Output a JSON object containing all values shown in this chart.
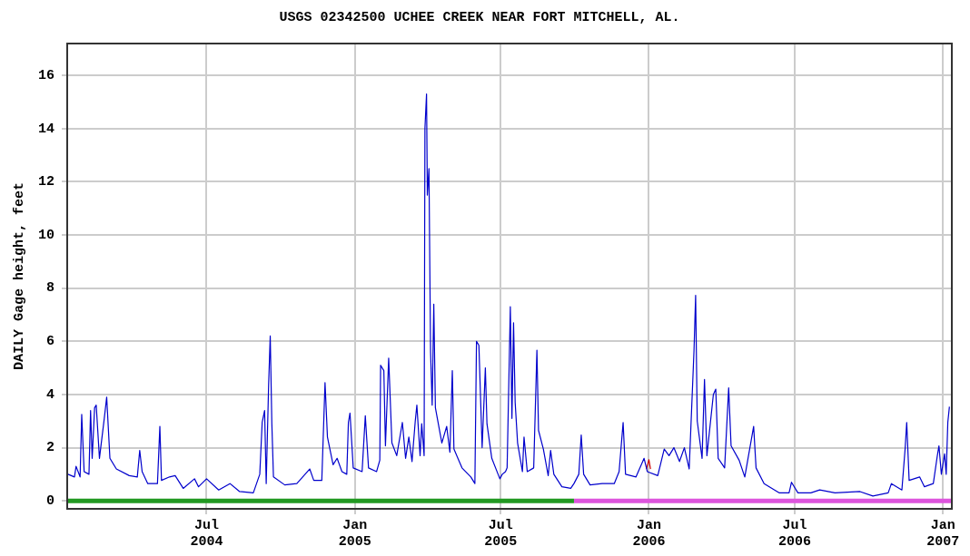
{
  "chart_data": {
    "type": "line",
    "title": "USGS 02342500 UCHEE CREEK NEAR FORT MITCHELL, AL.",
    "ylabel": "DAILY Gage height, feet",
    "marker": "none",
    "grid": true,
    "xlim": [
      "2004-01-10",
      "2007-01-12"
    ],
    "xticks": [
      {
        "value": "2004-07-01",
        "label": "Jul 2004"
      },
      {
        "value": "2005-01-01",
        "label": "Jan 2005"
      },
      {
        "value": "2005-07-01",
        "label": "Jul 2005"
      },
      {
        "value": "2006-01-01",
        "label": "Jan 2006"
      },
      {
        "value": "2006-07-01",
        "label": "Jul 2006"
      },
      {
        "value": "2007-01-01",
        "label": "Jan 2007"
      }
    ],
    "ylim": [
      -0.3,
      17.2
    ],
    "yticks": [
      0,
      2,
      4,
      6,
      8,
      10,
      12,
      14,
      16
    ],
    "series": [
      {
        "color": "#0000cc",
        "x": [
          "2004-01-11",
          "2004-01-19",
          "2004-01-21",
          "2004-01-26",
          "2004-01-28",
          "2004-01-31",
          "2004-02-06",
          "2004-02-08",
          "2004-02-10",
          "2004-02-13",
          "2004-02-15",
          "2004-02-19",
          "2004-02-25",
          "2004-02-28",
          "2004-03-03",
          "2004-03-11",
          "2004-03-27",
          "2004-04-06",
          "2004-04-09",
          "2004-04-12",
          "2004-04-19",
          "2004-05-01",
          "2004-05-04",
          "2004-05-06",
          "2004-05-16",
          "2004-05-23",
          "2004-06-02",
          "2004-06-16",
          "2004-06-21",
          "2004-07-01",
          "2004-07-16",
          "2004-07-30",
          "2004-08-11",
          "2004-08-28",
          "2004-09-05",
          "2004-09-08",
          "2004-09-11",
          "2004-09-13",
          "2004-09-16",
          "2004-09-18",
          "2004-09-20",
          "2004-09-22",
          "2004-10-06",
          "2004-10-21",
          "2004-11-06",
          "2004-11-11",
          "2004-11-21",
          "2004-11-25",
          "2004-11-28",
          "2004-12-05",
          "2004-12-10",
          "2004-12-16",
          "2004-12-22",
          "2004-12-24",
          "2004-12-26",
          "2004-12-30",
          "2005-01-10",
          "2005-01-14",
          "2005-01-18",
          "2005-01-28",
          "2005-02-01",
          "2005-02-02",
          "2005-02-06",
          "2005-02-08",
          "2005-02-12",
          "2005-02-16",
          "2005-02-22",
          "2005-03-01",
          "2005-03-05",
          "2005-03-09",
          "2005-03-13",
          "2005-03-17",
          "2005-03-19",
          "2005-03-23",
          "2005-03-25",
          "2005-03-28",
          "2005-03-29",
          "2005-03-31",
          "2005-04-01",
          "2005-04-03",
          "2005-04-05",
          "2005-04-07",
          "2005-04-09",
          "2005-04-11",
          "2005-04-19",
          "2005-04-25",
          "2005-04-29",
          "2005-05-02",
          "2005-05-04",
          "2005-05-14",
          "2005-05-25",
          "2005-05-30",
          "2005-06-01",
          "2005-06-04",
          "2005-06-08",
          "2005-06-12",
          "2005-06-14",
          "2005-06-20",
          "2005-06-30",
          "2005-07-03",
          "2005-07-07",
          "2005-07-09",
          "2005-07-13",
          "2005-07-15",
          "2005-07-17",
          "2005-07-19",
          "2005-07-22",
          "2005-07-28",
          "2005-07-30",
          "2005-08-03",
          "2005-08-11",
          "2005-08-15",
          "2005-08-17",
          "2005-08-23",
          "2005-08-29",
          "2005-09-01",
          "2005-09-05",
          "2005-09-15",
          "2005-09-26",
          "2005-09-30",
          "2005-10-06",
          "2005-10-09",
          "2005-10-12",
          "2005-10-20",
          "2005-11-04",
          "2005-11-19",
          "2005-11-25",
          "2005-11-30",
          "2005-12-03",
          "2005-12-16",
          "2005-12-26",
          "2005-12-30",
          "2006-01-12",
          "2006-01-20",
          "2006-01-26",
          "2006-02-01",
          "2006-02-08",
          "2006-02-14",
          "2006-02-20",
          "2006-02-26",
          "2006-02-28",
          "2006-03-02",
          "2006-03-08",
          "2006-03-11",
          "2006-03-14",
          "2006-03-22",
          "2006-03-25",
          "2006-03-28",
          "2006-04-05",
          "2006-04-10",
          "2006-04-13",
          "2006-04-23",
          "2006-04-30",
          "2006-05-11",
          "2006-05-14",
          "2006-05-24",
          "2006-06-12",
          "2006-06-24",
          "2006-06-27",
          "2006-07-05",
          "2006-07-21",
          "2006-08-01",
          "2006-08-20",
          "2006-09-20",
          "2006-10-06",
          "2006-10-25",
          "2006-10-29",
          "2006-11-11",
          "2006-11-15",
          "2006-11-17",
          "2006-11-20",
          "2006-12-03",
          "2006-12-09",
          "2006-12-20",
          "2006-12-25",
          "2006-12-27",
          "2006-12-30",
          "2007-01-03",
          "2007-01-05",
          "2007-01-07",
          "2007-01-09"
        ],
        "values": [
          1.0,
          0.9,
          1.3,
          0.9,
          3.25,
          1.1,
          1.0,
          3.4,
          1.6,
          3.5,
          3.6,
          1.6,
          3.1,
          3.9,
          1.6,
          1.2,
          0.95,
          0.9,
          1.9,
          1.1,
          0.65,
          0.65,
          2.8,
          0.77,
          0.9,
          0.95,
          0.47,
          0.83,
          0.53,
          0.83,
          0.41,
          0.65,
          0.35,
          0.3,
          1.0,
          2.95,
          3.4,
          0.65,
          4.37,
          6.2,
          2.9,
          0.9,
          0.6,
          0.65,
          1.2,
          0.77,
          0.77,
          4.45,
          2.4,
          1.36,
          1.6,
          1.1,
          1.0,
          2.95,
          3.3,
          1.24,
          1.1,
          3.2,
          1.24,
          1.1,
          1.53,
          5.1,
          4.9,
          2.07,
          5.37,
          2.18,
          1.7,
          2.95,
          1.6,
          2.4,
          1.48,
          3.0,
          3.6,
          1.7,
          2.9,
          1.7,
          14.0,
          15.3,
          11.5,
          12.5,
          5.6,
          3.6,
          7.4,
          3.5,
          2.18,
          2.8,
          1.83,
          4.9,
          1.95,
          1.24,
          0.9,
          0.65,
          6.0,
          5.85,
          2.0,
          5.0,
          2.9,
          1.6,
          0.83,
          1.0,
          1.1,
          1.24,
          7.3,
          3.1,
          6.7,
          3.7,
          2.18,
          1.1,
          2.4,
          1.1,
          1.24,
          5.67,
          2.65,
          1.95,
          0.95,
          1.9,
          1.0,
          0.53,
          0.47,
          0.65,
          1.0,
          2.48,
          1.0,
          0.6,
          0.65,
          0.65,
          1.1,
          2.95,
          1.0,
          0.9,
          1.6,
          1.1,
          0.95,
          1.95,
          1.7,
          2.0,
          1.48,
          2.0,
          1.2,
          5.67,
          7.73,
          3.0,
          1.6,
          4.57,
          1.7,
          4.0,
          4.2,
          1.6,
          1.24,
          4.25,
          2.07,
          1.53,
          0.9,
          2.8,
          1.24,
          0.65,
          0.3,
          0.3,
          0.7,
          0.3,
          0.3,
          0.41,
          0.3,
          0.35,
          0.18,
          0.3,
          0.65,
          0.41,
          1.95,
          2.95,
          0.77,
          0.9,
          0.53,
          0.65,
          1.7,
          2.07,
          1.0,
          1.77,
          1.0,
          2.95,
          3.54
        ]
      },
      {
        "color": "#cc0000",
        "x": [
          "2005-12-29",
          "2006-01-01",
          "2006-01-03"
        ],
        "values": [
          1.2,
          1.55,
          1.2
        ]
      },
      {
        "color": "#229922",
        "x": [
          "2004-01-10",
          "2005-09-30"
        ],
        "values": [
          0,
          0
        ]
      },
      {
        "color": "#dd55dd",
        "x": [
          "2005-09-30",
          "2007-01-12"
        ],
        "values": [
          0,
          0
        ]
      }
    ]
  }
}
